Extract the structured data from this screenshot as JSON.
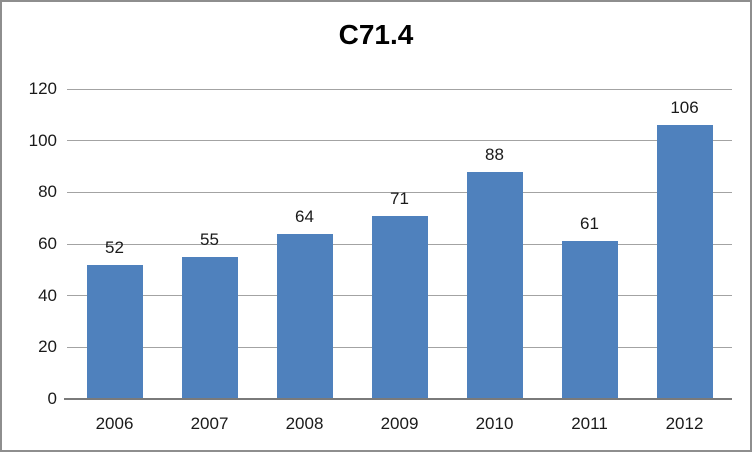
{
  "window": {
    "background_color": "#FFFFFF",
    "frame_border_color": "#8E8E8E"
  },
  "chart_data": {
    "type": "bar",
    "title": "C71.4",
    "categories": [
      "2006",
      "2007",
      "2008",
      "2009",
      "2010",
      "2011",
      "2012"
    ],
    "values": [
      52,
      55,
      64,
      71,
      88,
      61,
      106
    ],
    "xlabel": "",
    "ylabel": "",
    "ylim": [
      0,
      120
    ],
    "yticks": [
      0,
      20,
      40,
      60,
      80,
      100,
      120
    ],
    "grid": true,
    "data_labels": true,
    "legend": "none",
    "bar_color": "#4F81BD",
    "gridline_color": "#A3A3A3",
    "axis_line_color": "#7A7A7A",
    "label_color": "#1A1A1A",
    "title_color": "#000000"
  }
}
